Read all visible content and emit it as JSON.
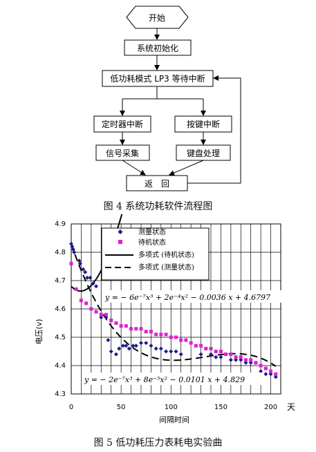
{
  "flowchart": {
    "start": "开始",
    "init": "系统初始化",
    "lowpower": "低功耗模式 LP3 等待中断",
    "timer": "定时器中断",
    "key": "按键中断",
    "sampling": "信号采集",
    "keyboard": "键盘处理",
    "return": "返　回",
    "caption": "图 4 系统功耗软件流程图"
  },
  "chart_data": {
    "type": "scatter",
    "ylabel": "电压(v)",
    "xlabel": "间隔时间",
    "x_unit_label": "天",
    "xlim": [
      0,
      210
    ],
    "ylim": [
      4.3,
      4.9
    ],
    "x_ticks": [
      "0",
      "50",
      "100",
      "150",
      "200"
    ],
    "y_ticks": [
      "4.3",
      "4.4",
      "4.5",
      "4.6",
      "4.7",
      "4.8",
      "4.9"
    ],
    "legend": [
      "测量状态",
      "待机状态",
      "多项式 (待机状态)",
      "多项式 (测量状态)"
    ],
    "equation_standby": "y = − 6e⁻⁷x³ + 2e⁻⁴x² − 0.0036 x + 4.6797",
    "equation_measure": "y = − 2e⁻⁷x³ + 8e⁻⁵x² − 0.0101 x + 4.829",
    "series": [
      {
        "name": "测量状态",
        "color": "#1a1a8c",
        "x": [
          0,
          1,
          2,
          3,
          8,
          9,
          12,
          14,
          16,
          19,
          22,
          25,
          30,
          35,
          37,
          40,
          45,
          48,
          52,
          55,
          58,
          62,
          65,
          70,
          75,
          80,
          85,
          90,
          95,
          100,
          105,
          110,
          130,
          140,
          145,
          150,
          155,
          160,
          165,
          170,
          175,
          180,
          185,
          190,
          195,
          200,
          205
        ],
        "y": [
          4.83,
          4.82,
          4.81,
          4.8,
          4.77,
          4.76,
          4.74,
          4.73,
          4.71,
          4.71,
          4.69,
          4.68,
          4.57,
          4.57,
          4.49,
          4.45,
          4.44,
          4.46,
          4.47,
          4.47,
          4.46,
          4.47,
          4.47,
          4.48,
          4.48,
          4.47,
          4.46,
          4.46,
          4.45,
          4.45,
          4.45,
          4.44,
          4.44,
          4.44,
          4.43,
          4.43,
          4.44,
          4.42,
          4.42,
          4.42,
          4.41,
          4.41,
          4.41,
          4.38,
          4.37,
          4.37,
          4.36
        ]
      },
      {
        "name": "待机状态",
        "color": "#e020d0",
        "x": [
          0,
          5,
          10,
          15,
          20,
          25,
          30,
          35,
          40,
          45,
          50,
          55,
          60,
          65,
          70,
          75,
          80,
          85,
          90,
          95,
          100,
          105,
          110,
          115,
          120,
          125,
          130,
          135,
          140,
          145,
          150,
          155,
          160,
          165,
          170,
          175,
          180,
          185,
          190,
          195,
          200,
          205
        ],
        "y": [
          4.76,
          4.67,
          4.63,
          4.62,
          4.6,
          4.59,
          4.58,
          4.58,
          4.56,
          4.55,
          4.54,
          4.54,
          4.53,
          4.53,
          4.53,
          4.52,
          4.52,
          4.51,
          4.51,
          4.51,
          4.5,
          4.5,
          4.49,
          4.49,
          4.48,
          4.47,
          4.47,
          4.46,
          4.46,
          4.45,
          4.45,
          4.44,
          4.44,
          4.43,
          4.43,
          4.42,
          4.42,
          4.41,
          4.4,
          4.39,
          4.38,
          4.37
        ]
      }
    ],
    "fits": [
      {
        "name": "多项式 (待机状态)",
        "dash": false,
        "coeffs": [
          -6e-07,
          0.0002,
          -0.0036,
          4.6797
        ]
      },
      {
        "name": "多项式 (测量状态)",
        "dash": true,
        "coeffs": [
          -2e-07,
          8e-05,
          -0.0101,
          4.829
        ]
      }
    ],
    "caption": "图 5 低功耗压力表耗电实验曲"
  }
}
